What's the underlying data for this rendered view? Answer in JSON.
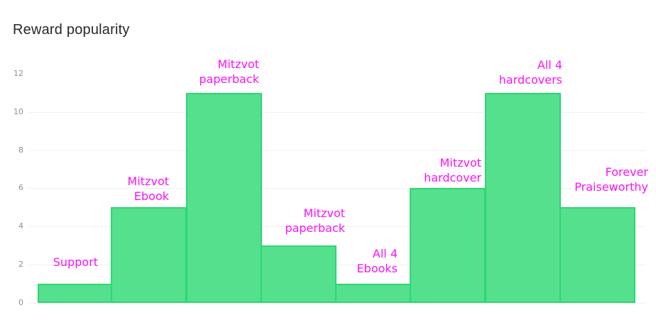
{
  "chart_data": {
    "type": "bar",
    "title": "Reward popularity",
    "categories": [
      "Support",
      "Mitzvot Ebook",
      "Mitzvot paperback",
      "Mitzvot paperback",
      "All 4 Ebooks",
      "Mitzvot hardcover",
      "All 4 hardcovers",
      "Forever Praiseworthy"
    ],
    "values": [
      1,
      5,
      11,
      3,
      1,
      6,
      11,
      5
    ],
    "bar_labels": [
      [
        "Support"
      ],
      [
        "Mitzvot",
        "Ebook"
      ],
      [
        "Mitzvot",
        "paperback"
      ],
      [
        "Mitzvot",
        "paperback"
      ],
      [
        "All 4",
        "Ebooks"
      ],
      [
        "Mitzvot",
        "hardcover"
      ],
      [
        "All 4",
        "hardcovers"
      ],
      [
        "Forever",
        "Praiseworthy"
      ]
    ],
    "xlabel": "",
    "ylabel": "",
    "ylim": [
      0,
      12
    ],
    "y_ticks": [
      0,
      2,
      4,
      6,
      8,
      10,
      12
    ],
    "gridlines": "horizontal at 0,2,4,6,8,10 (none at 12)",
    "legend": "none",
    "colors": {
      "bar_fill": "#55e08e",
      "bar_border": "#2ed671",
      "bar_label": "#f913f9",
      "title": "#28282b",
      "axis_tick": "#8f8f8f",
      "gridline": "#f0f0f0",
      "background": "#ffffff"
    }
  }
}
